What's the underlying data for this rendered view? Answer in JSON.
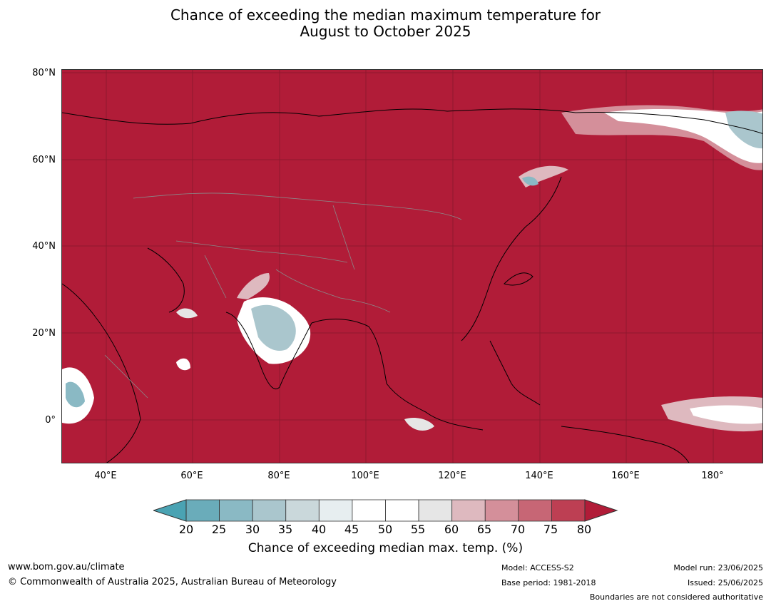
{
  "title": {
    "line1": "Chance of exceeding the median maximum temperature for",
    "line2": "August to October 2025"
  },
  "map": {
    "lat_ticks": [
      "80°N",
      "60°N",
      "40°N",
      "20°N",
      "0°"
    ],
    "lon_ticks": [
      "40°E",
      "60°E",
      "80°E",
      "100°E",
      "120°E",
      "140°E",
      "160°E",
      "180°"
    ],
    "background_color": "#b11c38"
  },
  "colorbar": {
    "labels": [
      "20",
      "25",
      "30",
      "35",
      "40",
      "45",
      "50",
      "55",
      "60",
      "65",
      "70",
      "75",
      "80"
    ],
    "colors": [
      "#6aacba",
      "#8ab9c4",
      "#aac6cd",
      "#cad8db",
      "#e7eef0",
      "#ffffff",
      "#ffffff",
      "#e6e6e6",
      "#deb9bf",
      "#d48f9a",
      "#c76675",
      "#bd3f53"
    ],
    "low_color": "#4aa3b3",
    "high_color": "#b11c38",
    "title": "Chance of exceeding median max. temp. (%)"
  },
  "footer": {
    "website": "www.bom.gov.au/climate",
    "copyright": "© Commonwealth of Australia 2025, Australian Bureau of Meteorology",
    "model": "Model: ACCESS-S2",
    "base_period": "Base period: 1981-2018",
    "model_run": "Model run: 23/06/2025",
    "issued": "Issued: 25/06/2025",
    "boundaries": "Boundaries are not considered authoritative"
  }
}
